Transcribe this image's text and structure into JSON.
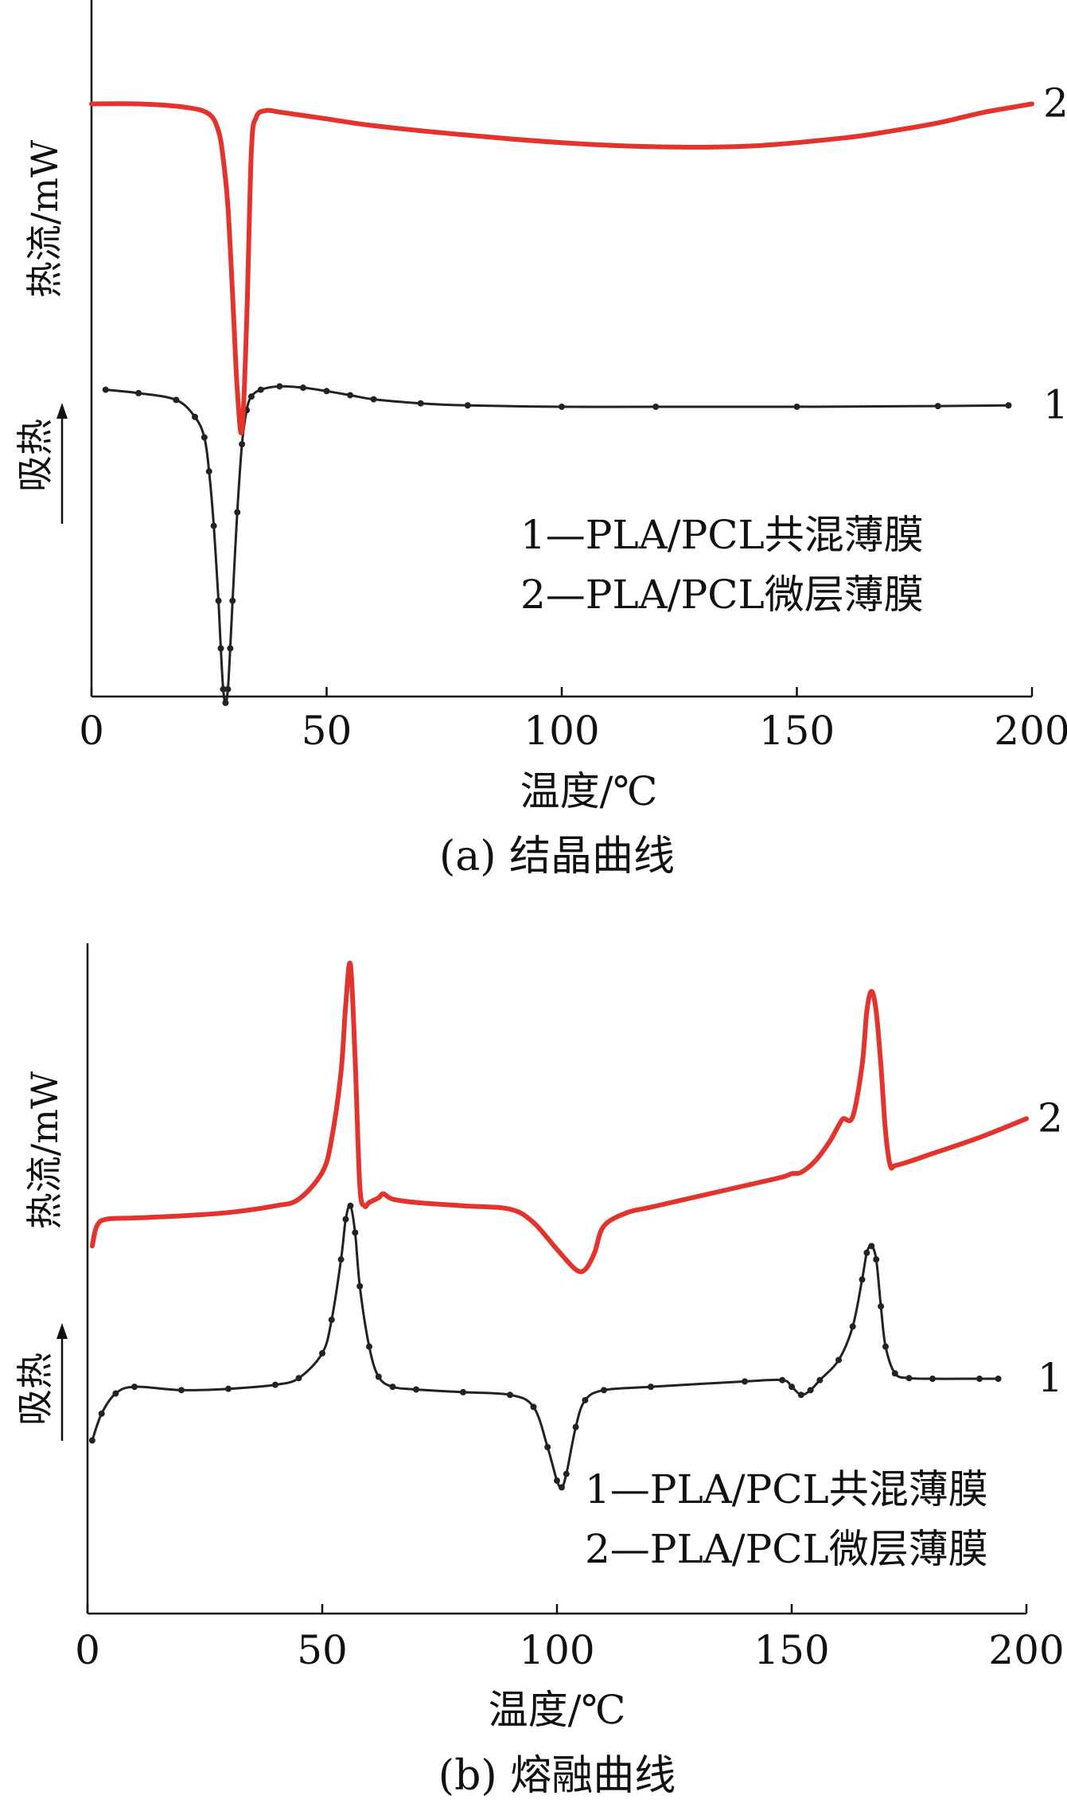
{
  "chart_data": [
    {
      "type": "line",
      "caption": "(a) 结晶曲线",
      "xlabel": "温度/℃",
      "ylabel": "热流/mW",
      "endo_label": "吸热",
      "xlim": [
        0,
        200
      ],
      "xticks": [
        0,
        50,
        100,
        150,
        200
      ],
      "ylim": [
        0,
        1
      ],
      "y_ticks_shown": false,
      "grid": false,
      "legend_position": "right-middle",
      "legend": [
        "1—PLA/PCL共混薄膜",
        "2—PLA/PCL微层薄膜"
      ],
      "series": [
        {
          "name": "1",
          "color": "#222222",
          "markers": true,
          "x": [
            3,
            10,
            18,
            22,
            24,
            25,
            26,
            27,
            27.5,
            28,
            28.5,
            29,
            29.5,
            30,
            31,
            32,
            33,
            34,
            36,
            40,
            45,
            50,
            55,
            60,
            70,
            80,
            100,
            120,
            150,
            180,
            195
          ],
          "y": [
            0.48,
            0.475,
            0.465,
            0.44,
            0.41,
            0.36,
            0.28,
            0.17,
            0.1,
            0.04,
            0.02,
            0.04,
            0.1,
            0.17,
            0.3,
            0.4,
            0.45,
            0.47,
            0.48,
            0.485,
            0.483,
            0.478,
            0.472,
            0.466,
            0.46,
            0.457,
            0.455,
            0.455,
            0.455,
            0.456,
            0.457
          ]
        },
        {
          "name": "2",
          "color": "#e2332d",
          "markers": false,
          "x": [
            0,
            10,
            20,
            25,
            27,
            28,
            29,
            30,
            31,
            32,
            33,
            34,
            35,
            37,
            40,
            50,
            60,
            80,
            100,
            120,
            140,
            160,
            170,
            180,
            185,
            190,
            195,
            200
          ],
          "y": [
            0.9,
            0.9,
            0.895,
            0.885,
            0.86,
            0.82,
            0.75,
            0.62,
            0.48,
            0.42,
            0.58,
            0.83,
            0.88,
            0.89,
            0.888,
            0.878,
            0.868,
            0.854,
            0.843,
            0.837,
            0.838,
            0.85,
            0.86,
            0.872,
            0.88,
            0.888,
            0.894,
            0.9
          ]
        }
      ],
      "series_labels": [
        {
          "text": "1",
          "x": 200,
          "y": 0.457
        },
        {
          "text": "2",
          "x": 200,
          "y": 0.9
        }
      ]
    },
    {
      "type": "line",
      "caption": "(b) 熔融曲线",
      "xlabel": "温度/℃",
      "ylabel": "热流/mW",
      "endo_label": "吸热",
      "xlim": [
        0,
        200
      ],
      "xticks": [
        0,
        50,
        100,
        150,
        200
      ],
      "ylim": [
        0,
        1
      ],
      "y_ticks_shown": false,
      "grid": false,
      "legend_position": "bottom-right",
      "legend": [
        "1—PLA/PCL共混薄膜",
        "2—PLA/PCL微层薄膜"
      ],
      "series": [
        {
          "name": "1",
          "color": "#222222",
          "markers": true,
          "x": [
            1,
            3,
            6,
            10,
            20,
            30,
            40,
            45,
            50,
            52,
            54,
            55,
            56,
            57,
            58,
            60,
            62,
            65,
            70,
            80,
            90,
            95,
            98,
            100,
            101,
            102,
            104,
            106,
            110,
            120,
            140,
            148,
            150,
            152,
            154,
            156,
            160,
            163,
            165,
            166,
            167,
            168,
            169,
            170,
            172,
            175,
            180,
            190,
            194
          ],
          "y": [
            0.25,
            0.29,
            0.32,
            0.33,
            0.325,
            0.327,
            0.333,
            0.343,
            0.38,
            0.43,
            0.52,
            0.58,
            0.6,
            0.56,
            0.48,
            0.39,
            0.345,
            0.33,
            0.326,
            0.322,
            0.318,
            0.3,
            0.24,
            0.19,
            0.18,
            0.2,
            0.27,
            0.31,
            0.325,
            0.33,
            0.338,
            0.34,
            0.33,
            0.318,
            0.325,
            0.34,
            0.37,
            0.42,
            0.49,
            0.53,
            0.54,
            0.52,
            0.45,
            0.39,
            0.35,
            0.343,
            0.342,
            0.342,
            0.342
          ]
        },
        {
          "name": "2",
          "color": "#e2332d",
          "markers": false,
          "x": [
            1,
            2,
            4,
            10,
            20,
            30,
            40,
            45,
            50,
            52,
            54,
            55,
            56,
            57,
            58,
            59,
            60,
            62,
            63,
            65,
            70,
            80,
            90,
            95,
            100,
            104,
            106,
            108,
            110,
            115,
            120,
            130,
            140,
            148,
            150,
            152,
            155,
            158,
            160,
            161,
            163,
            165,
            166,
            167,
            168,
            169,
            170,
            171,
            172,
            175,
            180,
            190,
            200
          ],
          "y": [
            0.54,
            0.57,
            0.58,
            0.582,
            0.585,
            0.59,
            0.6,
            0.61,
            0.65,
            0.7,
            0.8,
            0.9,
            0.96,
            0.82,
            0.63,
            0.6,
            0.605,
            0.612,
            0.618,
            0.61,
            0.605,
            0.6,
            0.595,
            0.575,
            0.535,
            0.505,
            0.505,
            0.53,
            0.57,
            0.59,
            0.598,
            0.614,
            0.63,
            0.643,
            0.648,
            0.65,
            0.667,
            0.695,
            0.72,
            0.73,
            0.733,
            0.81,
            0.89,
            0.92,
            0.89,
            0.81,
            0.71,
            0.66,
            0.66,
            0.666,
            0.678,
            0.702,
            0.73
          ]
        }
      ],
      "series_labels": [
        {
          "text": "1",
          "x": 200,
          "y": 0.342
        },
        {
          "text": "2",
          "x": 200,
          "y": 0.73
        }
      ]
    }
  ]
}
